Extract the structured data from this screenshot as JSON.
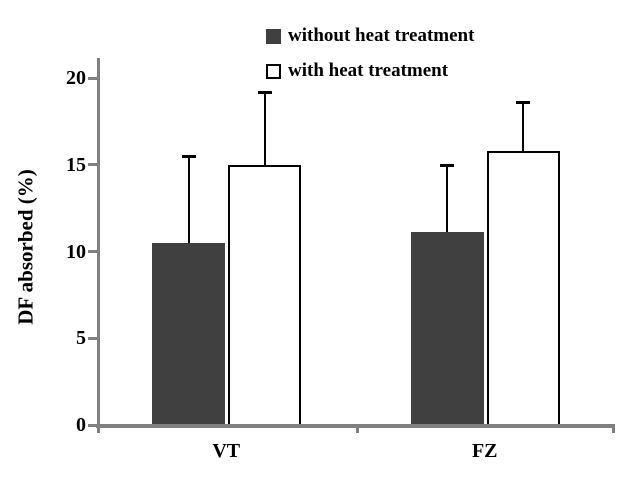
{
  "chart_data": {
    "type": "bar",
    "title": "",
    "categories": [
      "VT",
      "FZ"
    ],
    "series": [
      {
        "name": "without heat treatment",
        "values": [
          10.5,
          11.1
        ],
        "errors_plus": [
          5.0,
          3.9
        ],
        "fill": "#404040",
        "border": "#404040"
      },
      {
        "name": "with heat treatment",
        "values": [
          15.0,
          15.8
        ],
        "errors_plus": [
          4.2,
          2.8
        ],
        "fill": "#ffffff",
        "border": "#000000"
      }
    ],
    "xlabel": "",
    "ylabel": "DF absorbed (%)",
    "ylim": [
      0,
      20
    ],
    "yticks": [
      0,
      5,
      10,
      15,
      20
    ],
    "grid": false,
    "legend_position": "top-center",
    "error_bars": "upper-only"
  },
  "colors": {
    "axis": "#808080",
    "error_bar": "#000000",
    "background": "#ffffff",
    "text": "#000000"
  }
}
